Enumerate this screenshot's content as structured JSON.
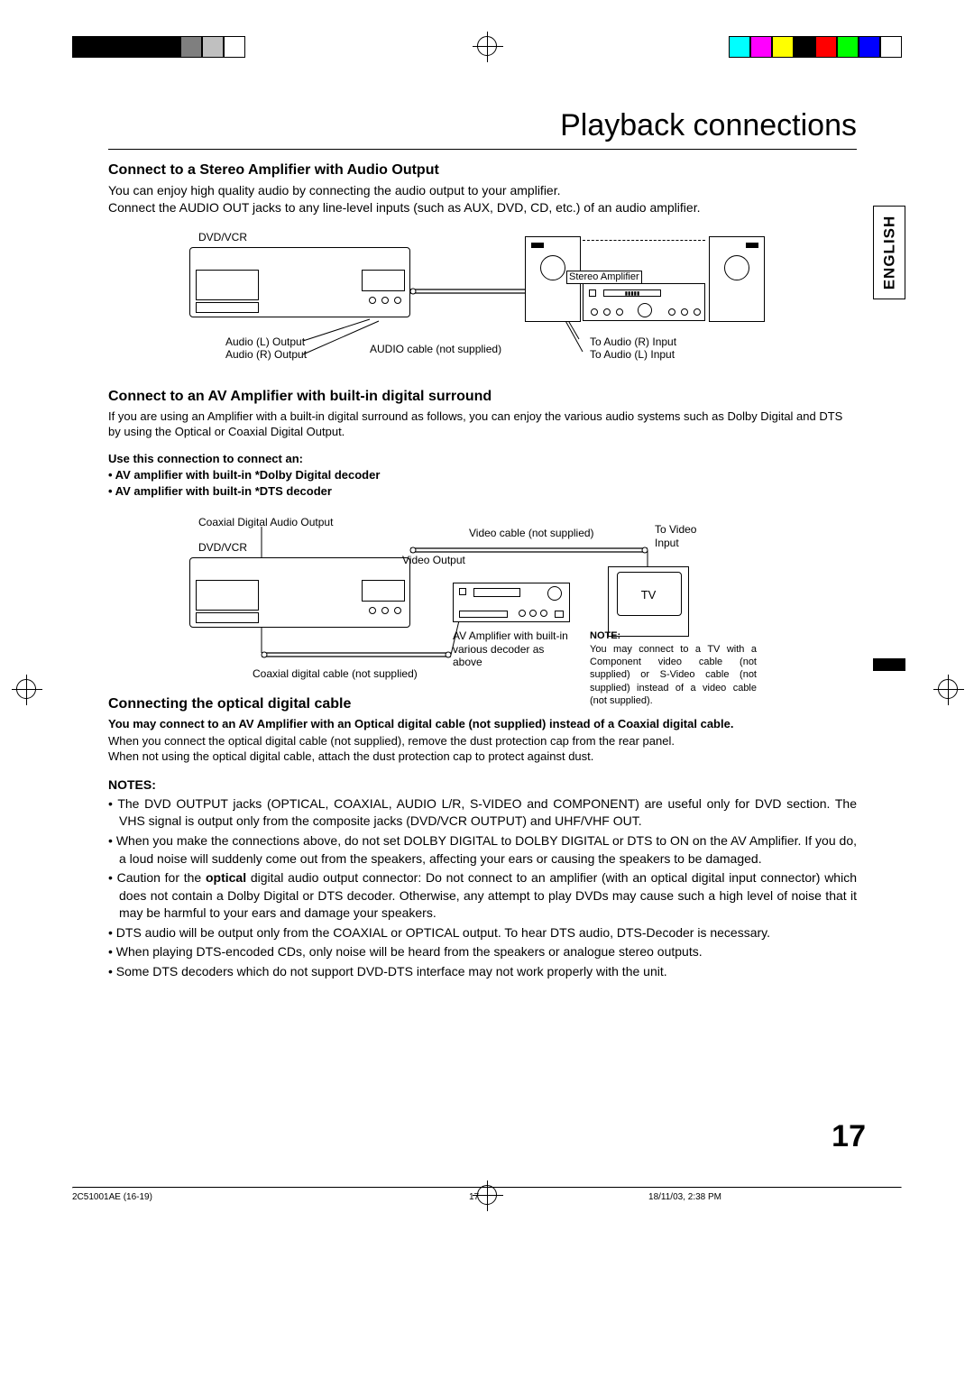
{
  "registration": {
    "left_bars": [
      "#000000",
      "#000000",
      "#000000",
      "#000000",
      "#000000",
      "#7f7f7f",
      "#c0c0c0",
      "#ffffff"
    ],
    "right_bars": [
      "#00ffff",
      "#ff00ff",
      "#ffff00",
      "#000000",
      "#ff0000",
      "#00ff00",
      "#0000ff",
      "#ffffff"
    ]
  },
  "language_tab": "ENGLISH",
  "page_title": "Playback connections",
  "section1": {
    "heading": "Connect to a Stereo Amplifier with Audio Output",
    "body": "You can enjoy high quality audio by connecting the audio output to your amplifier.\nConnect the AUDIO OUT jacks to any line-level inputs (such as AUX, DVD, CD, etc.) of an audio amplifier."
  },
  "diagram1": {
    "dvd_label": "DVD/VCR",
    "audio_l_out": "Audio (L) Output",
    "audio_r_out": "Audio (R) Output",
    "audio_cable": "AUDIO cable (not supplied)",
    "stereo_amp": "Stereo Amplifier",
    "to_audio_r": "To Audio (R) Input",
    "to_audio_l": "To Audio (L) Input"
  },
  "section2": {
    "heading": "Connect to an AV Amplifier with built-in digital surround",
    "body": "If you are using an Amplifier with a built-in digital surround as follows, you can enjoy the various audio systems such as Dolby Digital and DTS by using the Optical or Coaxial Digital Output.",
    "use_title": "Use this connection to connect an:",
    "use_b1": "• AV amplifier with built-in *Dolby Digital decoder",
    "use_b2": "• AV amplifier with built-in *DTS decoder"
  },
  "diagram2": {
    "coax_out": "Coaxial Digital Audio Output",
    "dvd_label": "DVD/VCR",
    "video_out": "Video Output",
    "video_cable": "Video cable (not supplied)",
    "to_video": "To Video Input",
    "tv": "TV",
    "av_amp": "AV Amplifier with built-in various decoder as above",
    "coax_cable": "Coaxial digital cable (not supplied)",
    "note_title": "NOTE:",
    "note_body": "You may connect to a TV with a Component video cable (not supplied) or S-Video cable (not supplied) instead of a video cable (not supplied)."
  },
  "section3": {
    "heading": "Connecting the optical digital cable",
    "bold_line": "You may connect to an AV Amplifier with an Optical digital cable (not supplied) instead of a Coaxial digital cable.",
    "line2": "When you connect the optical digital cable (not supplied), remove the dust protection cap from the rear panel.",
    "line3": "When not using the optical digital cable, attach the dust protection cap to protect against dust."
  },
  "notes": {
    "heading": "NOTES:",
    "items": [
      "The DVD OUTPUT jacks (OPTICAL, COAXIAL, AUDIO L/R, S-VIDEO and COMPONENT) are useful only for DVD section. The VHS signal is output only from the composite jacks (DVD/VCR  OUTPUT) and UHF/VHF OUT.",
      "When you make the connections above, do not set DOLBY DIGITAL to DOLBY DIGITAL or DTS to ON on the AV Amplifier. If you do, a loud noise will suddenly come out from the speakers, affecting your ears or causing the speakers to be damaged.",
      "Caution for the <b>optical</b> digital audio output connector: Do not connect to an amplifier (with an optical digital input connector) which does not contain a Dolby Digital or DTS decoder. Otherwise, any attempt to play DVDs may cause such a high level of noise that it may be harmful to your ears and damage your speakers.",
      "DTS audio will be output only from the COAXIAL or OPTICAL output. To hear DTS audio, DTS-Decoder is necessary.",
      "When playing DTS-encoded CDs, only noise will be heard from the speakers or analogue stereo outputs.",
      "Some DTS decoders which do not support DVD-DTS interface may not work properly with the unit."
    ]
  },
  "page_number": "17",
  "footer": {
    "doc_id": "2C51001AE (16-19)",
    "page": "17",
    "timestamp": "18/11/03, 2:38 PM"
  }
}
